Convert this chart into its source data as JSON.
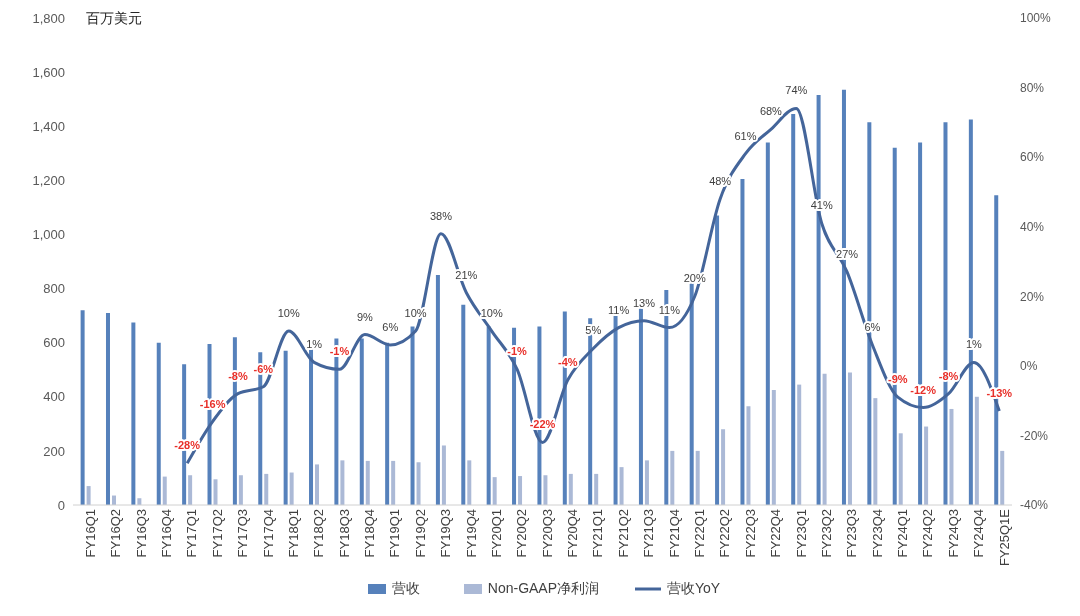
{
  "chart_data": {
    "type": "bar",
    "ylabel": "百万美元",
    "categories": [
      "FY16Q1",
      "FY16Q2",
      "FY16Q3",
      "FY16Q4",
      "FY17Q1",
      "FY17Q2",
      "FY17Q3",
      "FY17Q4",
      "FY18Q1",
      "FY18Q2",
      "FY18Q3",
      "FY18Q4",
      "FY19Q1",
      "FY19Q2",
      "FY19Q3",
      "FY19Q4",
      "FY20Q1",
      "FY20Q2",
      "FY20Q3",
      "FY20Q4",
      "FY21Q1",
      "FY21Q2",
      "FY21Q3",
      "FY21Q4",
      "FY22Q1",
      "FY22Q2",
      "FY22Q3",
      "FY22Q4",
      "FY23Q1",
      "FY23Q2",
      "FY23Q3",
      "FY23Q4",
      "FY24Q1",
      "FY24Q2",
      "FY24Q3",
      "FY24Q4",
      "FY25Q1E"
    ],
    "series": [
      {
        "name": "营收",
        "color": "#5681bb",
        "values": [
          720,
          710,
          675,
          600,
          520,
          595,
          620,
          565,
          570,
          600,
          615,
          615,
          600,
          660,
          850,
          740,
          660,
          655,
          660,
          715,
          690,
          720,
          745,
          795,
          830,
          1070,
          1205,
          1340,
          1445,
          1515,
          1535,
          1415,
          1320,
          1340,
          1415,
          1425,
          1145
        ]
      },
      {
        "name": "Non-GAAP净利润",
        "color": "#abb9d6",
        "values": [
          70,
          35,
          25,
          105,
          110,
          95,
          110,
          115,
          120,
          150,
          165,
          163,
          163,
          158,
          220,
          165,
          103,
          107,
          110,
          115,
          115,
          140,
          165,
          200,
          200,
          280,
          365,
          425,
          445,
          485,
          490,
          395,
          265,
          290,
          355,
          400,
          200
        ]
      },
      {
        "name": "营收YoY",
        "type": "line",
        "axis": "y2",
        "color": "#44659a",
        "values": [
          null,
          null,
          null,
          null,
          -28,
          -16,
          -8,
          -6,
          10,
          1,
          -1,
          9,
          6,
          10,
          38,
          21,
          10,
          -1,
          -22,
          -4,
          5,
          11,
          13,
          11,
          20,
          48,
          61,
          68,
          74,
          41,
          27,
          6,
          -9,
          -12,
          -8,
          1,
          -13
        ],
        "value_labels": [
          null,
          null,
          null,
          null,
          "-28%",
          "-16%",
          "-8%",
          "-6%",
          "10%",
          "1%",
          "-1%",
          "9%",
          "6%",
          "10%",
          "38%",
          "21%",
          "10%",
          "-1%",
          "-22%",
          "-4%",
          "5%",
          "11%",
          "13%",
          "11%",
          "20%",
          "48%",
          "61%",
          "68%",
          "74%",
          "41%",
          "27%",
          "6%",
          "-9%",
          "-12%",
          "-8%",
          "1%",
          "-13%"
        ]
      }
    ],
    "ylim": [
      0,
      1800
    ],
    "yticks": [
      0,
      200,
      400,
      600,
      800,
      {
        "value": 1000,
        "label": "1,000"
      },
      {
        "value": 1200,
        "label": "1,200"
      },
      {
        "value": 1400,
        "label": "1,400"
      },
      {
        "value": 1600,
        "label": "1,600"
      },
      {
        "value": 1800,
        "label": "1,800"
      }
    ],
    "y2lim": [
      -40,
      100
    ],
    "y2ticks": [
      {
        "value": -40,
        "label": "-40%"
      },
      {
        "value": -20,
        "label": "-20%"
      },
      {
        "value": 0,
        "label": "0%"
      },
      {
        "value": 20,
        "label": "20%"
      },
      {
        "value": 40,
        "label": "40%"
      },
      {
        "value": 60,
        "label": "60%"
      },
      {
        "value": 80,
        "label": "80%"
      },
      {
        "value": 100,
        "label": "100%"
      }
    ],
    "grid": false,
    "legend": "bottom",
    "marker": "none",
    "line_style": "solid"
  }
}
